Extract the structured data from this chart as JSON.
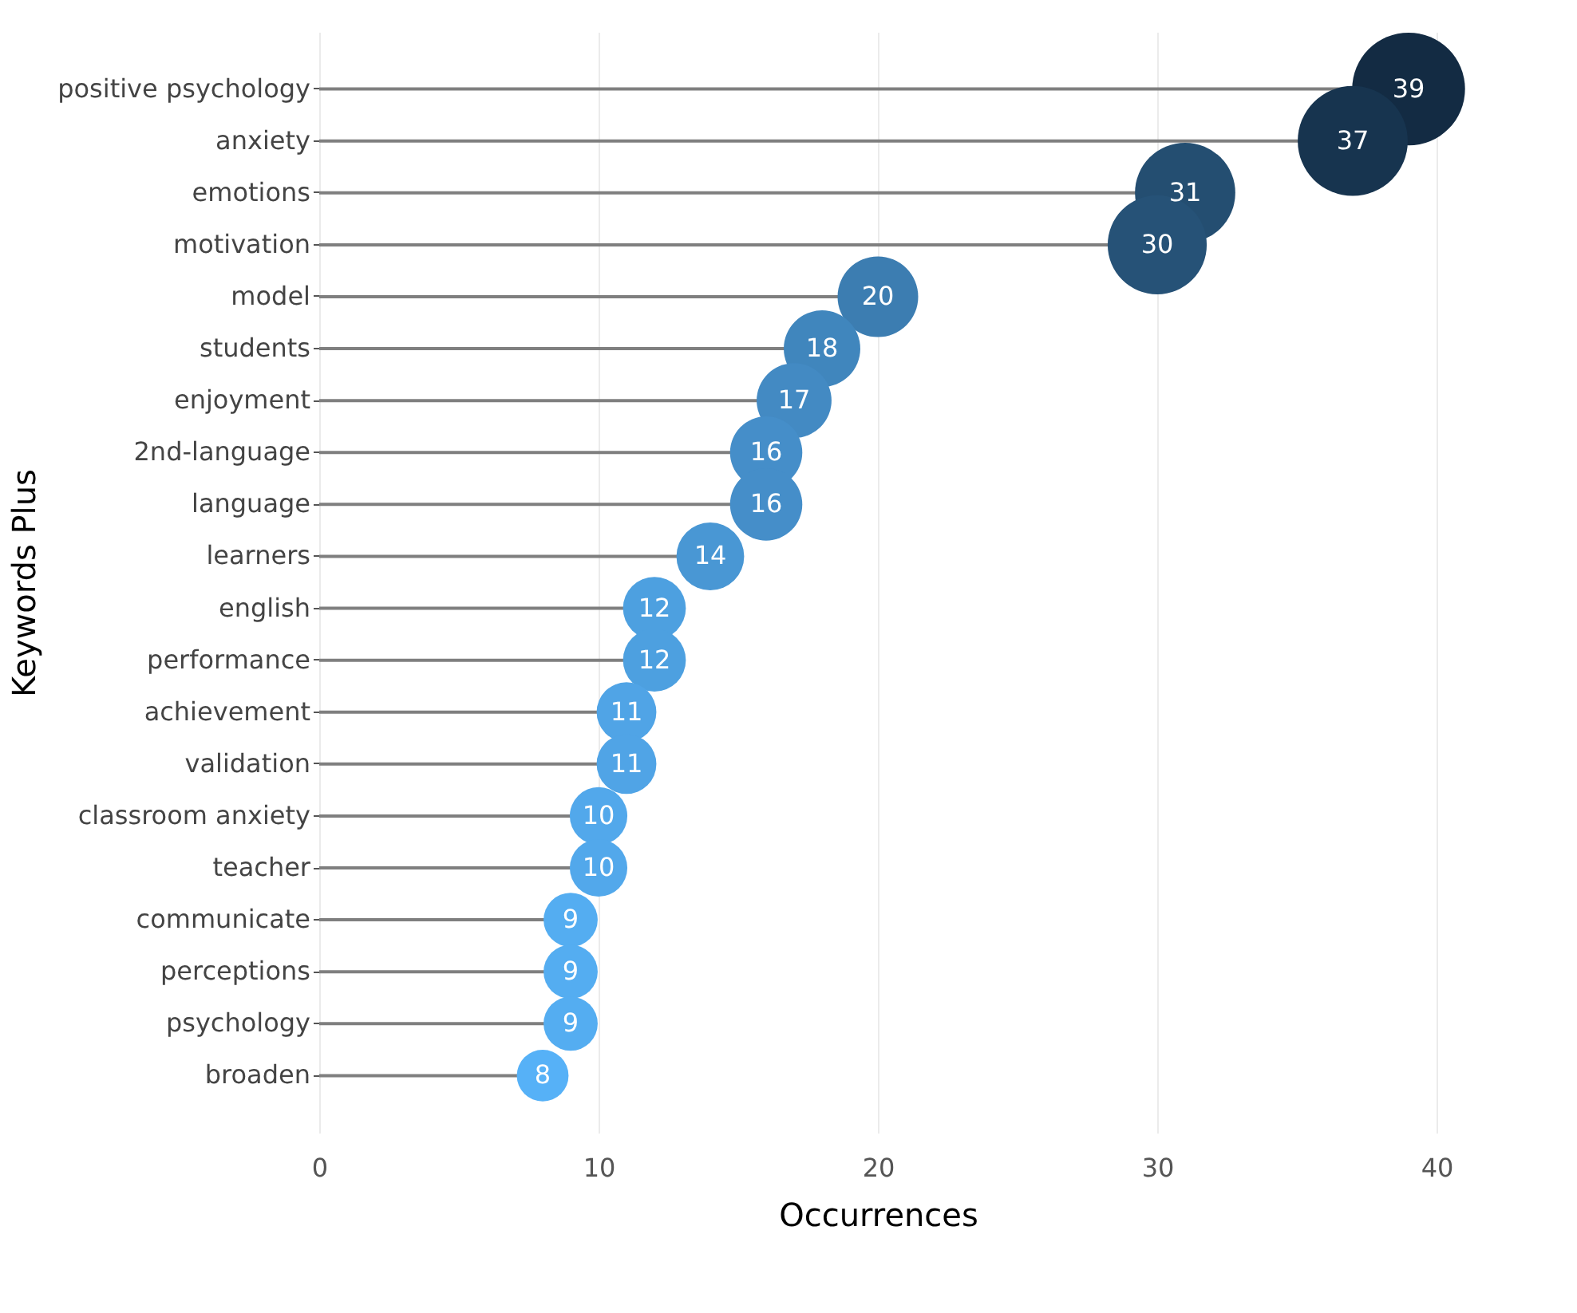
{
  "chart_data": {
    "type": "lollipop",
    "orientation": "horizontal",
    "xlabel": "Occurrences",
    "ylabel": "Keywords Plus",
    "categories": [
      "positive psychology",
      "anxiety",
      "emotions",
      "motivation",
      "model",
      "students",
      "enjoyment",
      "2nd-language",
      "language",
      "learners",
      "english",
      "performance",
      "achievement",
      "validation",
      "classroom anxiety",
      "teacher",
      "communicate",
      "perceptions",
      "psychology",
      "broaden"
    ],
    "values": [
      39,
      37,
      31,
      30,
      20,
      18,
      17,
      16,
      16,
      14,
      12,
      12,
      11,
      11,
      10,
      10,
      9,
      9,
      9,
      8
    ],
    "colors": [
      "#132b43",
      "#17344f",
      "#244e71",
      "#265277",
      "#3c7db1",
      "#4086bd",
      "#438ac3",
      "#458ec9",
      "#458ec9",
      "#4997d4",
      "#4da0e0",
      "#4da0e0",
      "#50a4e6",
      "#50a4e6",
      "#52a8eb",
      "#52a8eb",
      "#54adf1",
      "#54adf1",
      "#54adf1",
      "#56b1f7"
    ],
    "sizes": [
      1,
      0.95,
      0.79,
      0.77,
      0.51,
      0.46,
      0.44,
      0.41,
      0.41,
      0.36,
      0.31,
      0.31,
      0.28,
      0.28,
      0.26,
      0.26,
      0.23,
      0.23,
      0.23,
      0.21
    ],
    "xlim": [
      0,
      40
    ],
    "xticks": [
      0,
      10,
      20,
      30,
      40
    ],
    "grid": "x",
    "data_labels": true
  }
}
